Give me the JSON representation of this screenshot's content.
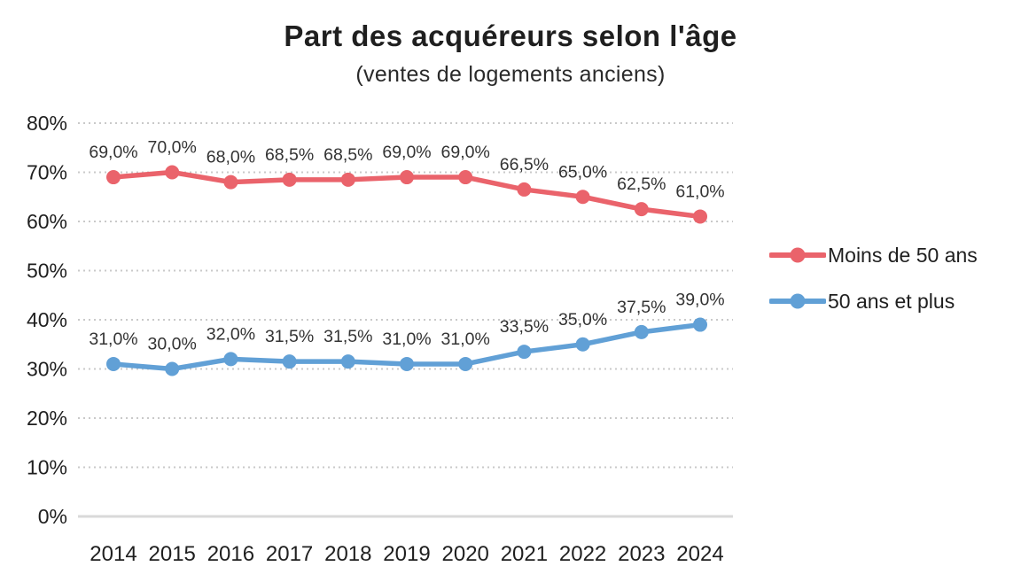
{
  "chart_data": {
    "type": "line",
    "title": "Part des acquéreurs selon l'âge",
    "subtitle": "(ventes de logements anciens)",
    "categories": [
      "2014",
      "2015",
      "2016",
      "2017",
      "2018",
      "2019",
      "2020",
      "2021",
      "2022",
      "2023",
      "2024"
    ],
    "series": [
      {
        "name": "Moins de 50 ans",
        "color": "#ea636b",
        "values": [
          69.0,
          70.0,
          68.0,
          68.5,
          68.5,
          69.0,
          69.0,
          66.5,
          65.0,
          62.5,
          61.0
        ],
        "labels": [
          "69,0%",
          "70,0%",
          "68,0%",
          "68,5%",
          "68,5%",
          "69,0%",
          "69,0%",
          "66,5%",
          "65,0%",
          "62,5%",
          "61,0%"
        ]
      },
      {
        "name": "50 ans et plus",
        "color": "#61a0d6",
        "values": [
          31.0,
          30.0,
          32.0,
          31.5,
          31.5,
          31.0,
          31.0,
          33.5,
          35.0,
          37.5,
          39.0
        ],
        "labels": [
          "31,0%",
          "30,0%",
          "32,0%",
          "31,5%",
          "31,5%",
          "31,0%",
          "31,0%",
          "33,5%",
          "35,0%",
          "37,5%",
          "39,0%"
        ]
      }
    ],
    "xlabel": "",
    "ylabel": "",
    "ylim": [
      0,
      80
    ],
    "ytick_step": 10,
    "ytick_labels": [
      "0%",
      "10%",
      "20%",
      "30%",
      "40%",
      "50%",
      "60%",
      "70%",
      "80%"
    ],
    "grid": "horizontal-dotted",
    "legend_position": "right",
    "colors": {
      "grid_dotted": "#c9c9c9",
      "zero_line": "#d9d9d9",
      "axis_text": "#1f1f1f",
      "data_label_text": "#333333"
    }
  }
}
